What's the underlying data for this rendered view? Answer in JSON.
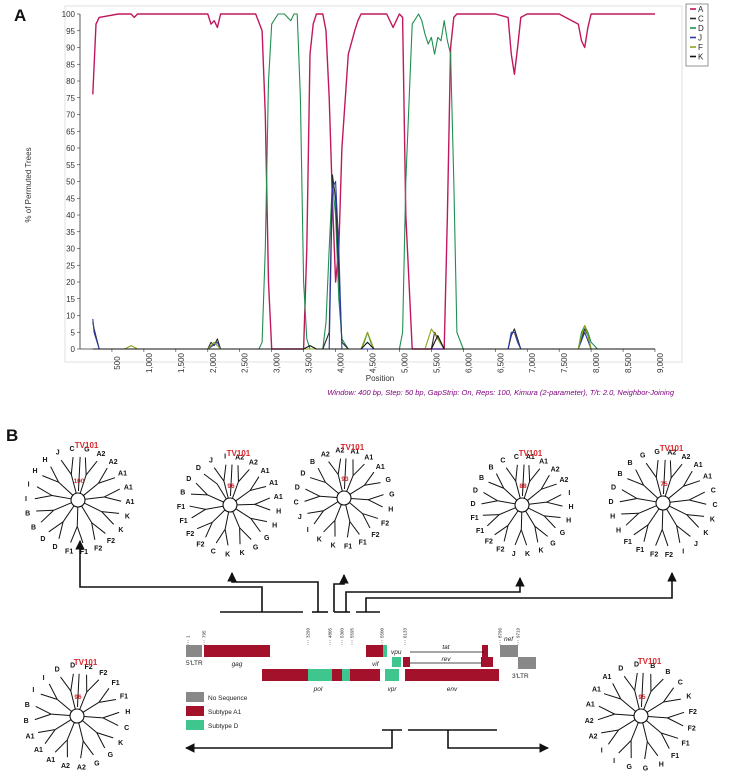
{
  "panel_a": {
    "label": "A",
    "caption": "Window: 400 bp, Step: 50 bp, GapStrip: On, Reps: 100, Kimura (2-parameter), T/t: 2.0, Neighbor-Joining",
    "legend": [
      {
        "name": "A",
        "color": "#c0185e"
      },
      {
        "name": "C",
        "color": "#2a2a2a"
      },
      {
        "name": "D",
        "color": "#1f8f4f"
      },
      {
        "name": "J",
        "color": "#2b3aa8"
      },
      {
        "name": "F",
        "color": "#8aa41c"
      },
      {
        "name": "K",
        "color": "#111111"
      }
    ]
  },
  "chart_data": {
    "type": "line",
    "xlabel": "Position",
    "ylabel": "% of Permuted Trees",
    "xlim": [
      0,
      9000
    ],
    "ylim": [
      0,
      100
    ],
    "xticks": [
      500,
      1000,
      1500,
      2000,
      2500,
      3000,
      3500,
      4000,
      4500,
      5000,
      5500,
      6000,
      6500,
      7000,
      7500,
      8000,
      8500,
      9000
    ],
    "xtick_labels": [
      "500",
      "1,000",
      "1,500",
      "2,000",
      "2,500",
      "3,000",
      "3,500",
      "4,000",
      "4,500",
      "5,000",
      "5,500",
      "6,000",
      "6,500",
      "7,000",
      "7,500",
      "8,000",
      "8,500",
      "9,000"
    ],
    "yticks": [
      0,
      5,
      10,
      15,
      20,
      25,
      30,
      35,
      40,
      45,
      50,
      55,
      60,
      65,
      70,
      75,
      80,
      85,
      90,
      95,
      100
    ],
    "series": [
      {
        "name": "A",
        "color": "#c0185e",
        "x": [
          200,
          250,
          300,
          600,
          800,
          850,
          900,
          1500,
          2000,
          2050,
          2100,
          2150,
          2200,
          2500,
          2750,
          2850,
          2900,
          2950,
          3000,
          3050,
          3400,
          3500,
          3550,
          3600,
          3650,
          3700,
          3800,
          3850,
          3900,
          3950,
          4000,
          4050,
          4100,
          4200,
          4300,
          4350,
          4400,
          4500,
          4800,
          4900,
          5000,
          5050,
          5100,
          5200,
          5400,
          5700,
          5750,
          5800,
          5850,
          5900,
          6000,
          6500,
          6700,
          6750,
          6800,
          6850,
          6900,
          7000,
          7500,
          7800,
          7850,
          7900,
          7950,
          8000,
          8500,
          9000
        ],
        "y": [
          76,
          97,
          99,
          100,
          100,
          99,
          100,
          100,
          100,
          97,
          98,
          96,
          100,
          100,
          100,
          95,
          70,
          20,
          0,
          0,
          0,
          0,
          30,
          88,
          97,
          100,
          100,
          95,
          75,
          45,
          20,
          30,
          60,
          88,
          95,
          98,
          100,
          100,
          100,
          96,
          100,
          99,
          40,
          0,
          0,
          0,
          40,
          90,
          99,
          100,
          100,
          100,
          99,
          88,
          82,
          90,
          99,
          100,
          100,
          97,
          92,
          90,
          96,
          100,
          100,
          100
        ]
      },
      {
        "name": "D",
        "color": "#1f8f4f",
        "x": [
          200,
          2800,
          2850,
          2900,
          2950,
          3000,
          3100,
          3200,
          3300,
          3350,
          3400,
          3450,
          3500,
          3550,
          3600,
          3700,
          3800,
          3850,
          3900,
          3950,
          4000,
          4050,
          4100,
          4200,
          4300,
          4400,
          4450,
          4500,
          4550,
          4600,
          4800,
          5000,
          5050,
          5100,
          5200,
          5300,
          5350,
          5400,
          5450,
          5500,
          5550,
          5600,
          5650,
          5700,
          5750,
          5800,
          5850,
          5900,
          6000,
          7000,
          7800,
          7850,
          7900,
          7950,
          8000,
          8100,
          9000
        ],
        "y": [
          0,
          0,
          2,
          30,
          80,
          97,
          100,
          100,
          98,
          100,
          100,
          75,
          20,
          3,
          0,
          0,
          0,
          8,
          30,
          50,
          40,
          15,
          3,
          0,
          0,
          0,
          2,
          5,
          2,
          0,
          0,
          0,
          5,
          50,
          97,
          100,
          98,
          94,
          91,
          93,
          88,
          93,
          92,
          98,
          92,
          88,
          50,
          5,
          0,
          0,
          0,
          5,
          7,
          5,
          2,
          0,
          0
        ]
      },
      {
        "name": "C",
        "color": "#2a2a2a",
        "x": [
          200,
          220,
          300,
          2000,
          2050,
          2100,
          2150,
          2200,
          2800,
          3000,
          3500,
          3800,
          3900,
          3950,
          4000,
          4100,
          4200,
          5200,
          5500,
          5550,
          5600,
          5700,
          6000,
          6700,
          6750,
          6800,
          6850,
          6900,
          7800,
          7850,
          7900,
          7950,
          8000,
          9000
        ],
        "y": [
          8,
          6,
          0,
          0,
          2,
          1,
          3,
          0,
          0,
          0,
          0,
          0,
          5,
          52,
          45,
          2,
          0,
          0,
          0,
          5,
          3,
          0,
          0,
          0,
          4,
          6,
          3,
          0,
          0,
          3,
          6,
          4,
          0,
          0
        ]
      },
      {
        "name": "J",
        "color": "#2b3aa8",
        "x": [
          200,
          220,
          300,
          2000,
          2150,
          2200,
          3900,
          3950,
          4000,
          4050,
          4100,
          6700,
          6750,
          6800,
          6850,
          6900,
          7800,
          7900,
          8000,
          9000
        ],
        "y": [
          9,
          5,
          0,
          0,
          2,
          0,
          0,
          48,
          50,
          30,
          0,
          0,
          5,
          5,
          2,
          0,
          0,
          5,
          0,
          0
        ]
      },
      {
        "name": "F",
        "color": "#8aa41c",
        "x": [
          200,
          700,
          800,
          900,
          2000,
          2100,
          2200,
          4400,
          4500,
          4600,
          5400,
          5500,
          5600,
          5700,
          7800,
          7850,
          7900,
          7950,
          8000,
          9000
        ],
        "y": [
          0,
          0,
          1,
          0,
          0,
          2,
          0,
          0,
          5,
          0,
          0,
          6,
          3,
          0,
          0,
          4,
          7,
          4,
          0,
          0
        ]
      },
      {
        "name": "K",
        "color": "#111111",
        "x": [
          200,
          3500,
          3600,
          3700,
          4400,
          4500,
          4600,
          5500,
          5600,
          5700,
          9000
        ],
        "y": [
          0,
          0,
          1,
          0,
          0,
          2,
          0,
          0,
          4,
          0,
          0
        ]
      }
    ]
  },
  "panel_b": {
    "label": "B",
    "genome": {
      "positions": [
        "1",
        "795",
        "3299",
        "4805",
        "5360",
        "5595",
        "5500",
        "6133",
        "8796",
        "9719"
      ],
      "genes": {
        "ltr5": "5'LTR",
        "gag": "gag",
        "pol": "pol",
        "vif": "vif",
        "vpr": "vpr",
        "vpu": "vpu",
        "tat": "tat",
        "rev": "rev",
        "env": "env",
        "nef": "nef",
        "ltr3": "3'LTR"
      },
      "legend": [
        {
          "label": "No Sequence",
          "color": "#888888"
        },
        {
          "label": "Subtype A1",
          "color": "#a3122a"
        },
        {
          "label": "Subtype D",
          "color": "#3ec68e"
        }
      ]
    },
    "trees": [
      {
        "query": "TV101",
        "bootstrap": "100",
        "leaves": [
          "J",
          "C",
          "G",
          "A2",
          "A2",
          "A1",
          "A1",
          "A1",
          "K",
          "K",
          "F2",
          "F2",
          "F1",
          "F1",
          "D",
          "D",
          "B",
          "B",
          "I",
          "I",
          "H",
          "H"
        ]
      },
      {
        "query": "TV101",
        "bootstrap": "96",
        "leaves": [
          "J",
          "I",
          "A2",
          "A2",
          "A1",
          "A1",
          "A1",
          "H",
          "H",
          "G",
          "G",
          "K",
          "K",
          "C",
          "F2",
          "F2",
          "F1",
          "F1",
          "B",
          "D",
          "D"
        ]
      },
      {
        "query": "TV101",
        "bootstrap": "93",
        "leaves": [
          "A2",
          "A2",
          "A1",
          "A1",
          "A1",
          "G",
          "G",
          "H",
          "F2",
          "F2",
          "F1",
          "F1",
          "K",
          "K",
          "I",
          "J",
          "C",
          "D",
          "D",
          "B"
        ]
      },
      {
        "query": "TV101",
        "bootstrap": "88",
        "leaves": [
          "C",
          "C",
          "A1",
          "A1",
          "A2",
          "A2",
          "I",
          "H",
          "H",
          "G",
          "G",
          "K",
          "K",
          "J",
          "F2",
          "F2",
          "F1",
          "F1",
          "D",
          "D",
          "B",
          "B"
        ]
      },
      {
        "query": "TV101",
        "bootstrap": "75",
        "leaves": [
          "G",
          "G",
          "A2",
          "A2",
          "A1",
          "A1",
          "C",
          "C",
          "K",
          "K",
          "J",
          "I",
          "F2",
          "F2",
          "F1",
          "F1",
          "H",
          "H",
          "D",
          "D",
          "B",
          "B"
        ]
      },
      {
        "query": "TV101",
        "bootstrap": "96",
        "leaves": [
          "D",
          "D",
          "F2",
          "F2",
          "F1",
          "F1",
          "H",
          "C",
          "K",
          "G",
          "G",
          "A2",
          "A2",
          "A1",
          "A1",
          "A1",
          "B",
          "B",
          "I",
          "I"
        ]
      },
      {
        "query": "TV101",
        "bootstrap": "95",
        "leaves": [
          "D",
          "D",
          "B",
          "B",
          "C",
          "K",
          "F2",
          "F2",
          "F1",
          "F1",
          "H",
          "G",
          "G",
          "I",
          "I",
          "A2",
          "A2",
          "A1",
          "A1",
          "A1"
        ]
      }
    ]
  }
}
